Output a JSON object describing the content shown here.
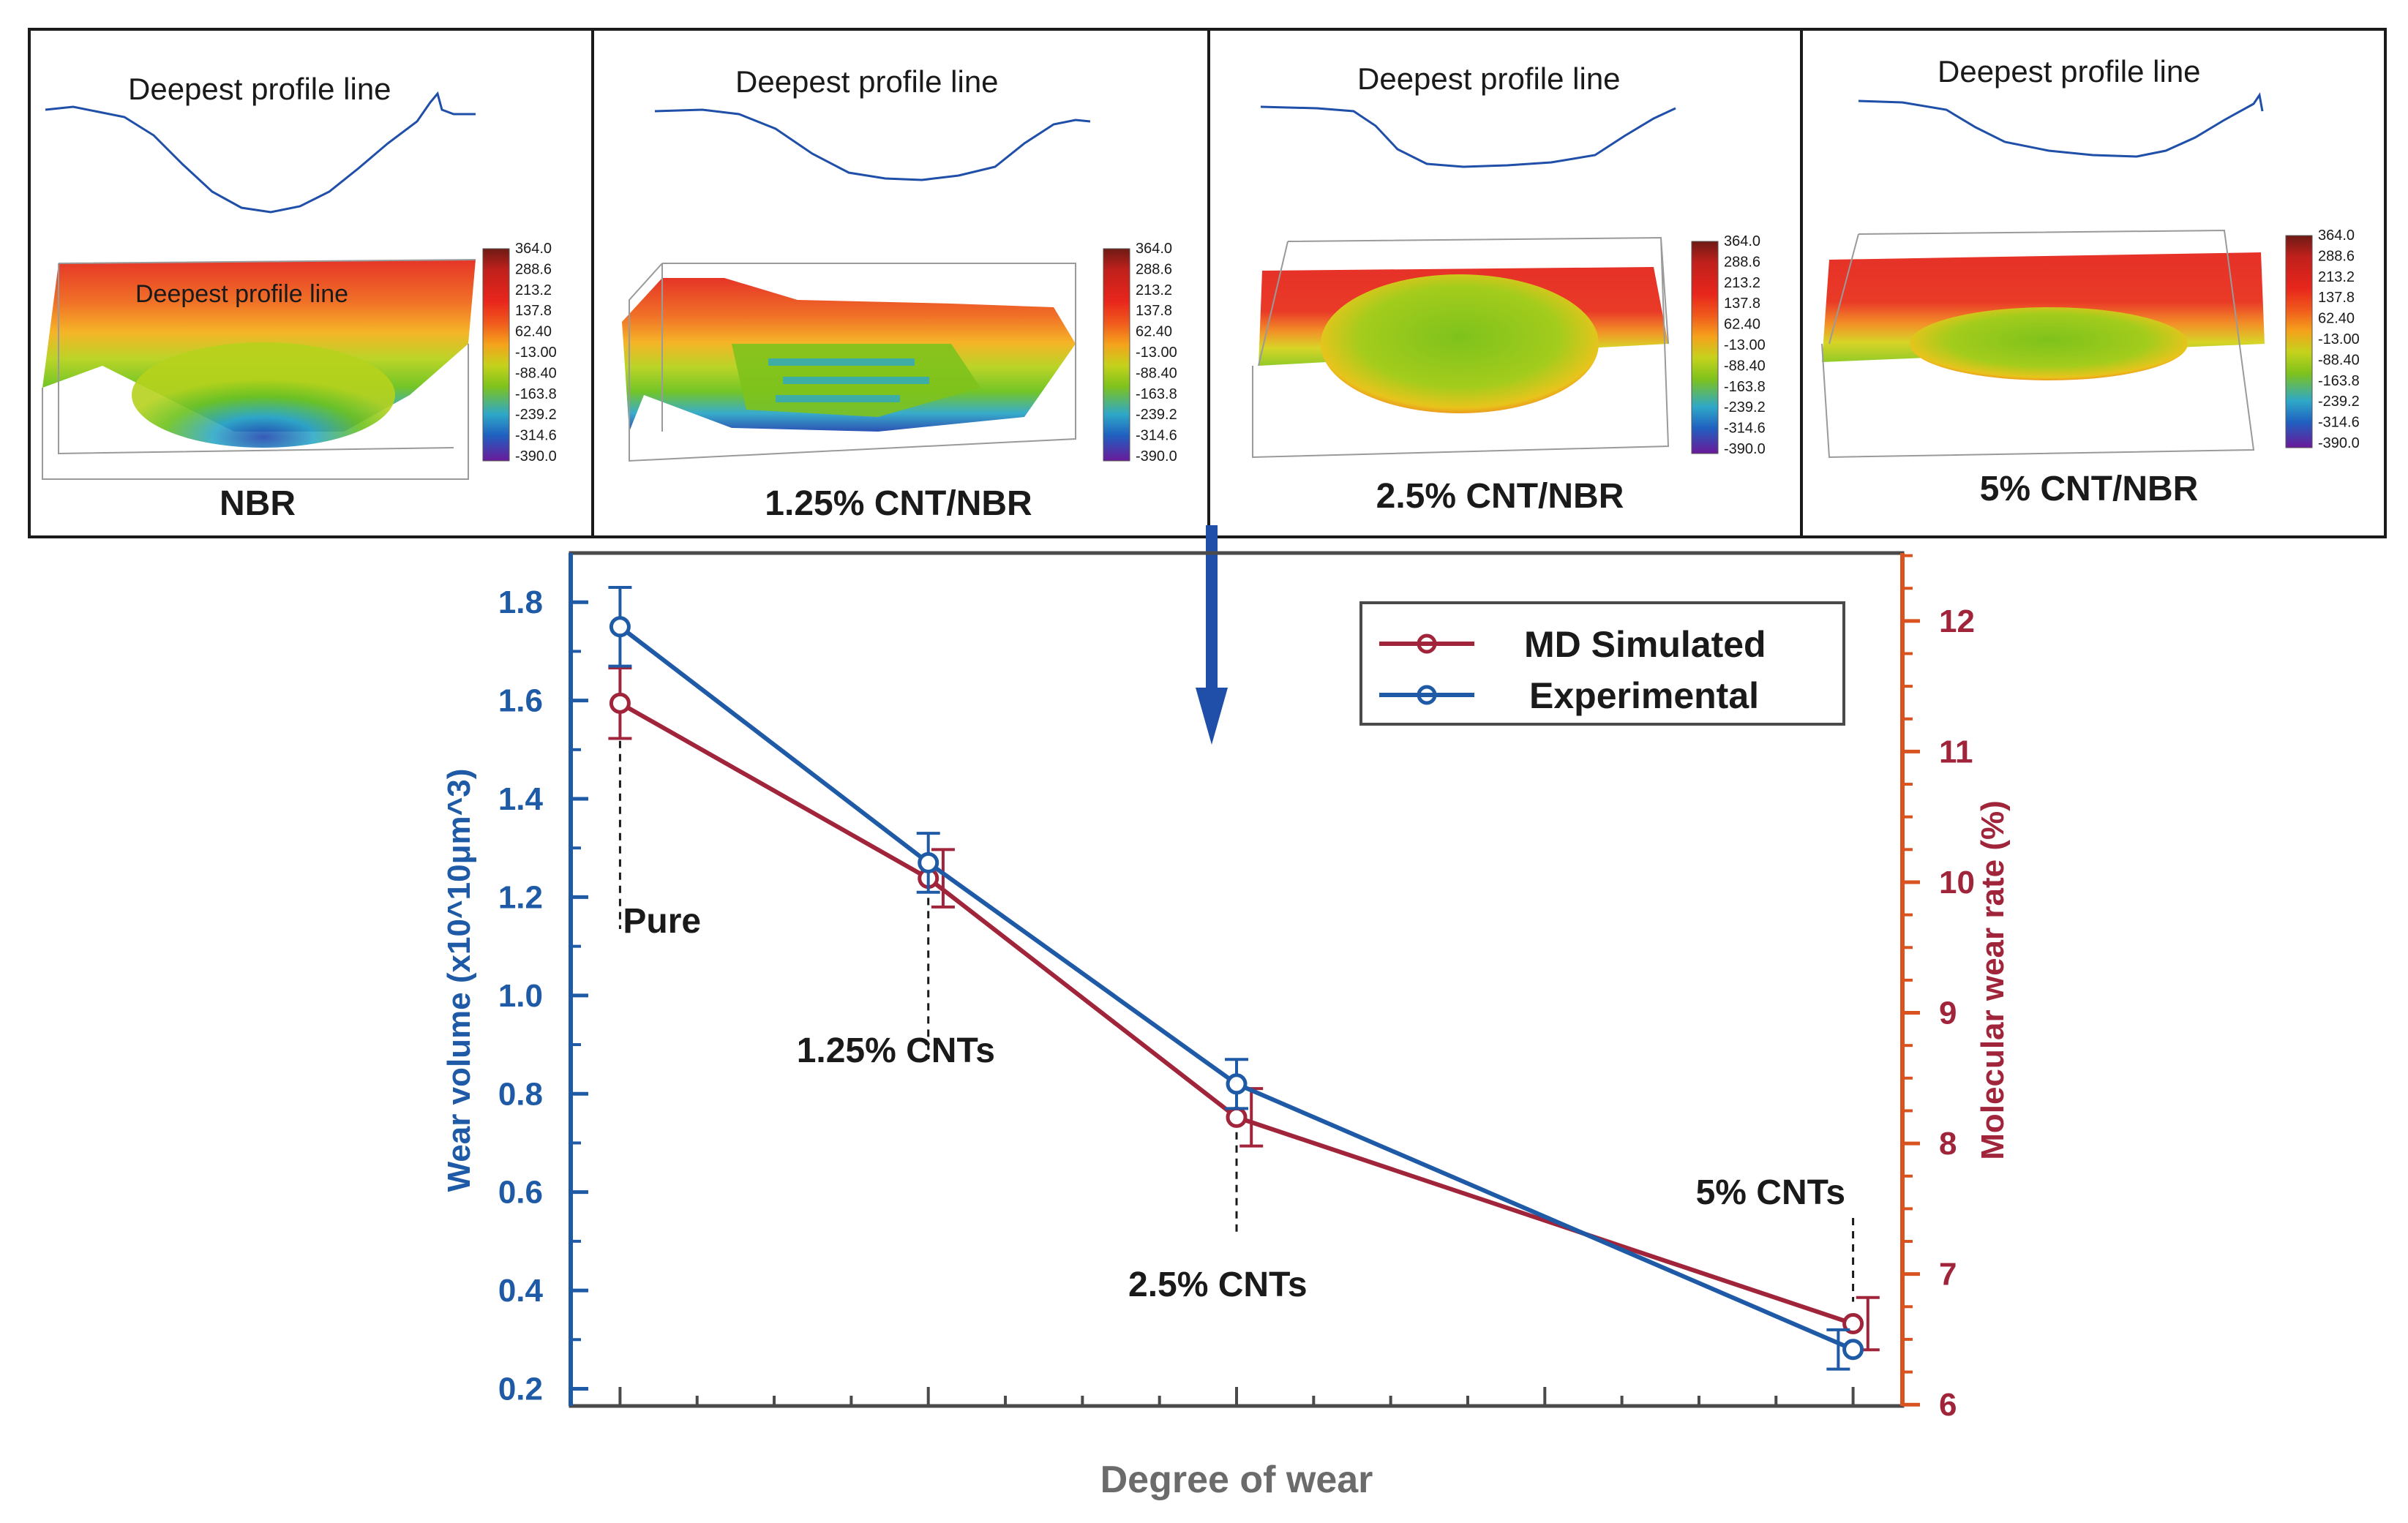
{
  "panels": [
    {
      "profile_label": "Deepest profile line",
      "surface_label": "Deepest profile line",
      "caption": "NBR"
    },
    {
      "profile_label": "Deepest profile line",
      "caption": "1.25% CNT/NBR"
    },
    {
      "profile_label": "Deepest profile line",
      "caption": "2.5% CNT/NBR"
    },
    {
      "profile_label": "Deepest profile line",
      "caption": "5% CNT/NBR"
    }
  ],
  "colorbar": {
    "labels": [
      "364.0",
      "288.6",
      "213.2",
      "137.8",
      "62.40",
      "-13.00",
      "-88.40",
      "-163.8",
      "-239.2",
      "-314.6",
      "-390.0"
    ],
    "colors": [
      "#6e1a14",
      "#c0201c",
      "#e8261c",
      "#f05a1c",
      "#f5a21c",
      "#c4d21c",
      "#7ec21c",
      "#2ea8c8",
      "#2060c0",
      "#4a2ab0",
      "#6a1a9a"
    ]
  },
  "colors": {
    "experimental": "#1f5aa6",
    "simulated": "#a0243a",
    "right_axis": "#d8531f",
    "arrow": "#1f4fa8"
  },
  "chart_data": {
    "type": "line",
    "title": "",
    "xlabel": "Degree of wear",
    "ylabel_left": "Wear volume (x10^10μm^3)",
    "ylabel_right": "Molecular wear  rate (%)",
    "categories": [
      "Pure",
      "1.25% CNTs",
      "2.5% CNTs",
      "5% CNTs"
    ],
    "x_positions": [
      0,
      25,
      50,
      100
    ],
    "xlim": [
      -4,
      104
    ],
    "ylim_left": [
      0.165,
      1.9
    ],
    "ylim_right": [
      5.99,
      12.52
    ],
    "yticks_left": [
      "0.2",
      "0.4",
      "0.6",
      "0.8",
      "1.0",
      "1.2",
      "1.4",
      "1.6",
      "1.8"
    ],
    "yticks_right": [
      "6",
      "7",
      "8",
      "9",
      "10",
      "11",
      "12"
    ],
    "series": [
      {
        "name": "MD Simulated",
        "axis": "right",
        "x": [
          0,
          25,
          50,
          100
        ],
        "values": [
          11.37,
          10.03,
          8.2,
          6.62
        ],
        "errors": [
          0.27,
          0.22,
          0.22,
          0.2
        ],
        "error_x_offset": [
          0,
          1.2,
          1.2,
          1.2
        ]
      },
      {
        "name": "Experimental",
        "axis": "left",
        "x": [
          0,
          25,
          50,
          100
        ],
        "values": [
          1.75,
          1.27,
          0.82,
          0.28
        ],
        "errors": [
          0.08,
          0.06,
          0.05,
          0.04
        ],
        "error_x_offset": [
          0,
          0,
          0,
          -1.2
        ]
      }
    ],
    "legend": {
      "position": "top-right",
      "entries": [
        "MD Simulated",
        "Experimental"
      ]
    },
    "annotations": [
      "Pure",
      "1.25% CNTs",
      "2.5% CNTs",
      "5% CNTs"
    ]
  }
}
